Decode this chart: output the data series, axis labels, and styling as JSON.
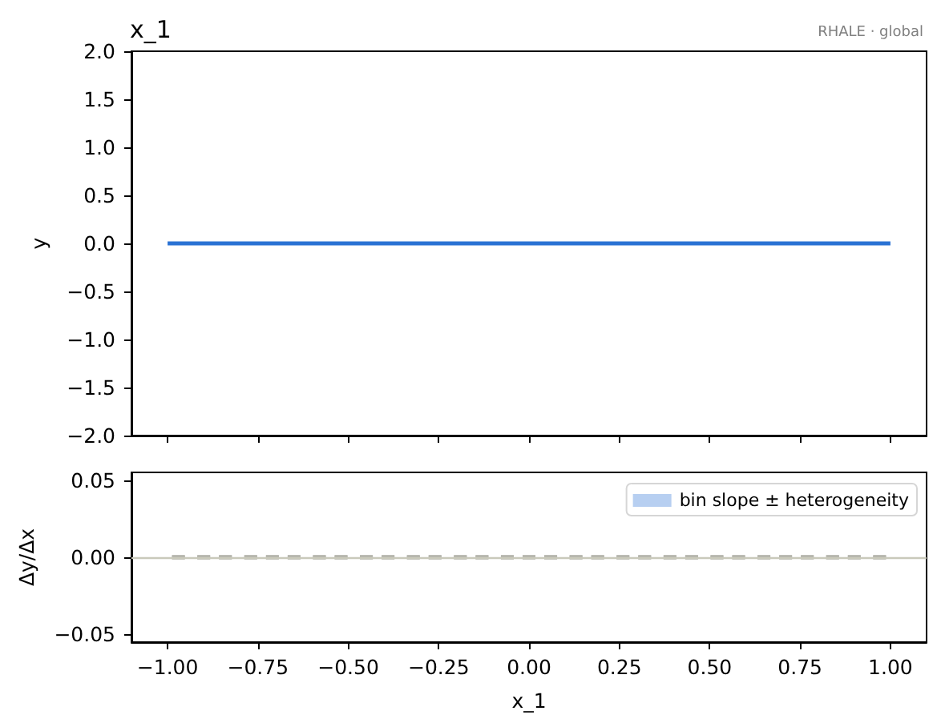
{
  "chart_data": [
    {
      "type": "line",
      "title": "x_1",
      "ylabel": "y",
      "annotations": [
        "RHALE · global"
      ],
      "series": [
        {
          "x": [
            -1,
            1
          ],
          "values": [
            0,
            0
          ],
          "color": "#2a72d4"
        }
      ],
      "xlim": [
        -1.1,
        1.1
      ],
      "xticks": [
        -1,
        -0.75,
        -0.5,
        -0.25,
        0,
        0.25,
        0.5,
        0.75,
        1
      ],
      "ylim": [
        -2,
        2
      ],
      "yticks": [
        {
          "value": -2,
          "label": "−2.0"
        },
        -1.5,
        {
          "value": -1,
          "label": "−1.0"
        },
        -0.5,
        {
          "value": 0,
          "label": "0.0"
        },
        0.5,
        {
          "value": 1,
          "label": "1.0"
        },
        1.5,
        {
          "value": 2,
          "label": "2.0"
        }
      ],
      "tick_labels": "y",
      "grid": false,
      "legend": false
    },
    {
      "type": "bar",
      "xlabel": "x_1",
      "ylabel": "Δy/Δx",
      "series": [
        {
          "name": "bin slope ± heterogeneity",
          "color": "#b7cff1",
          "x": [
            -0.97,
            -0.9,
            -0.84,
            -0.77,
            -0.71,
            -0.65,
            -0.58,
            -0.52,
            -0.45,
            -0.39,
            -0.32,
            -0.26,
            -0.19,
            -0.13,
            -0.06,
            0,
            0.06,
            0.13,
            0.19,
            0.26,
            0.32,
            0.39,
            0.45,
            0.52,
            0.58,
            0.65,
            0.71,
            0.77,
            0.84,
            0.9,
            0.97
          ],
          "values": [
            0,
            0,
            0,
            0,
            0,
            0,
            0,
            0,
            0,
            0,
            0,
            0,
            0,
            0,
            0,
            0,
            0,
            0,
            0,
            0,
            0,
            0,
            0,
            0,
            0,
            0,
            0,
            0,
            0,
            0,
            0
          ],
          "errors": [
            0,
            0,
            0,
            0,
            0,
            0,
            0,
            0,
            0,
            0,
            0,
            0,
            0,
            0,
            0,
            0,
            0,
            0,
            0,
            0,
            0,
            0,
            0,
            0,
            0,
            0,
            0,
            0,
            0,
            0,
            0
          ]
        }
      ],
      "xlim": [
        -1.1,
        1.1
      ],
      "xticks": [
        {
          "value": -1,
          "label": "−1.00"
        },
        -0.75,
        {
          "value": -0.5,
          "label": "−0.50"
        },
        -0.25,
        {
          "value": 0,
          "label": "0.00"
        },
        0.25,
        {
          "value": 0.5,
          "label": "0.50"
        },
        0.75,
        {
          "value": 1,
          "label": "1.00"
        }
      ],
      "ylim": [
        -0.055,
        0.055
      ],
      "yticks": [
        -0.05,
        {
          "value": 0,
          "label": "0.00"
        },
        0.05
      ],
      "ref_lines": [
        {
          "axis": "y",
          "value": 0,
          "color": "#c9c9bb"
        }
      ],
      "grid": false,
      "legend": "top right"
    }
  ]
}
